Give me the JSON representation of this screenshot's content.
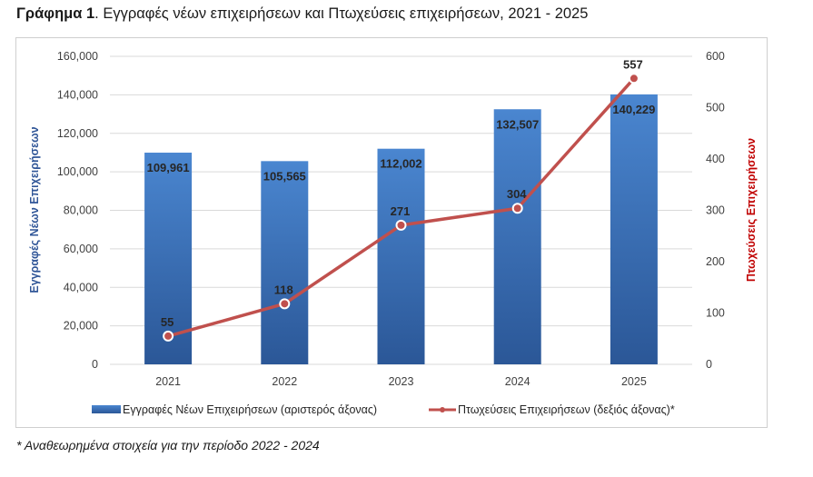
{
  "title_bold": "Γράφημα 1",
  "title_rest": ". Εγγραφές νέων επιχειρήσεων και Πτωχεύσεις επιχειρήσεων, 2021 - 2025",
  "footnote": "* Αναθεωρημένα στοιχεία για την περίοδο 2022 - 2024",
  "colors": {
    "bar_top": "#4a86d0",
    "bar_bottom": "#2b5797",
    "line": "#c0504d",
    "marker_fill": "#c0504d",
    "marker_stroke": "#ffffff",
    "left_axis_label": "#2f5597",
    "right_axis_label": "#c00000",
    "grid": "#d9d9d9"
  },
  "chart_data": {
    "type": "bar+line",
    "title": "Εγγραφές νέων επιχειρήσεων και Πτωχεύσεις επιχειρήσεων, 2021 - 2025",
    "categories": [
      "2021",
      "2022",
      "2023",
      "2024",
      "2025"
    ],
    "series": [
      {
        "name": "Εγγραφές Νέων Επιχειρήσεων (αριστερός άξονας)",
        "type": "bar",
        "axis": "left",
        "values": [
          109961,
          105565,
          112002,
          132507,
          140229
        ],
        "labels": [
          "109,961",
          "105,565",
          "112,002",
          "132,507",
          "140,229"
        ]
      },
      {
        "name": "Πτωχεύσεις Επιχειρήσεων (δεξιός άξονας)*",
        "type": "line",
        "axis": "right",
        "values": [
          55,
          118,
          271,
          304,
          557
        ],
        "labels": [
          "55",
          "118",
          "271",
          "304",
          "557"
        ]
      }
    ],
    "ylabel_left": "Εγγραφές Νέων Επιχειρήσεων",
    "ylabel_right": "Πτωχεύσεις Επιχειρήσεων",
    "ylim_left": [
      0,
      160000
    ],
    "ylim_right": [
      0,
      600
    ],
    "yticks_left": [
      "0",
      "20,000",
      "40,000",
      "60,000",
      "80,000",
      "100,000",
      "120,000",
      "140,000",
      "160,000"
    ],
    "yticks_right": [
      "0",
      "100",
      "200",
      "300",
      "400",
      "500",
      "600"
    ],
    "grid": true,
    "legend_position": "bottom"
  }
}
